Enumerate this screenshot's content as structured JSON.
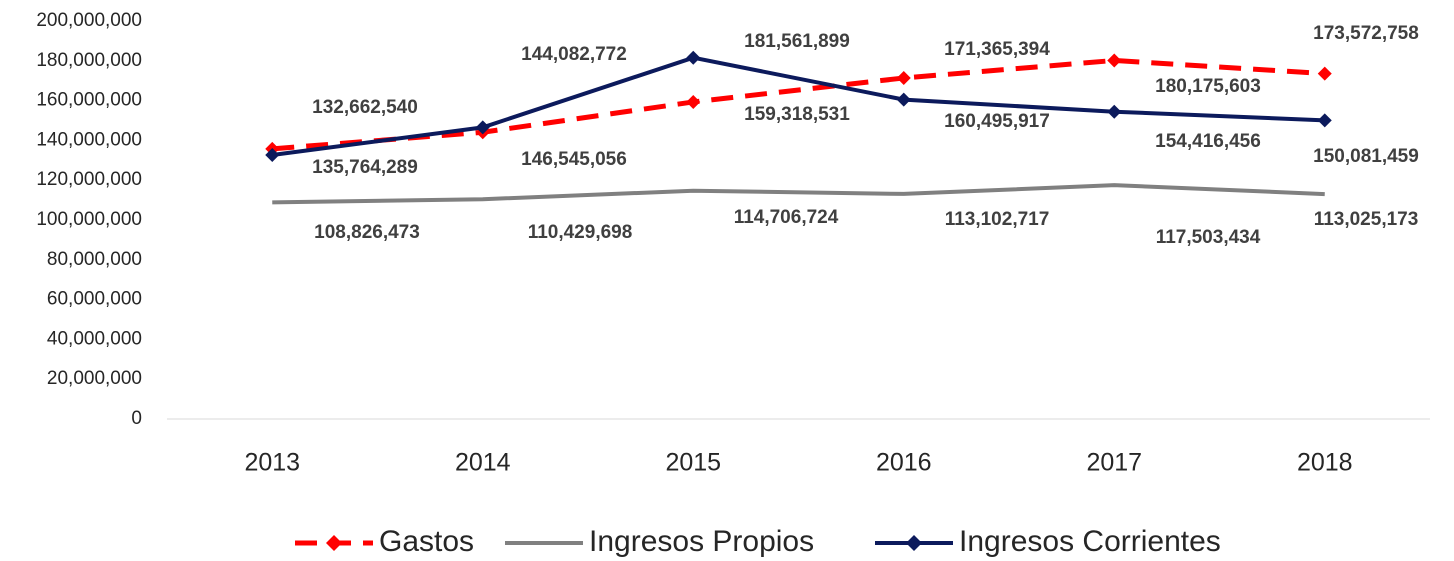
{
  "chart_data": {
    "type": "line",
    "categories": [
      "2013",
      "2014",
      "2015",
      "2016",
      "2017",
      "2018"
    ],
    "series": [
      {
        "name": "Gastos",
        "color": "#ff0000",
        "dashed": true,
        "markers": true,
        "values": [
          135764289,
          144082772,
          159318531,
          171365394,
          180175603,
          173572758
        ],
        "value_labels": [
          "135,764,289",
          "144,082,772",
          "159,318,531",
          "171,365,394",
          "180,175,603",
          "173,572,758"
        ]
      },
      {
        "name": "Ingresos Propios",
        "color": "#808080",
        "dashed": false,
        "markers": false,
        "values": [
          108826473,
          110429698,
          114706724,
          113102717,
          117503434,
          113025173
        ],
        "value_labels": [
          "108,826,473",
          "110,429,698",
          "114,706,724",
          "113,102,717",
          "117,503,434",
          "113,025,173"
        ]
      },
      {
        "name": "Ingresos Corrientes",
        "color": "#0c1a5c",
        "dashed": false,
        "markers": true,
        "values": [
          132662540,
          146545056,
          181561899,
          160495917,
          154416456,
          150081459
        ],
        "value_labels": [
          "132,662,540",
          "146,545,056",
          "181,561,899",
          "160,495,917",
          "154,416,456",
          "150,081,459"
        ]
      }
    ],
    "ylim": [
      0,
      200000000
    ],
    "yticks": [
      0,
      {
        "value": 20000000,
        "label": "20,000,000"
      },
      {
        "value": 40000000,
        "label": "40,000,000"
      },
      {
        "value": 60000000,
        "label": "60,000,000"
      },
      {
        "value": 80000000,
        "label": "80,000,000"
      },
      {
        "value": 100000000,
        "label": "100,000,000"
      },
      {
        "value": 120000000,
        "label": "120,000,000"
      },
      {
        "value": 140000000,
        "label": "140,000,000"
      },
      {
        "value": 160000000,
        "label": "160,000,000"
      },
      {
        "value": 180000000,
        "label": "180,000,000"
      },
      {
        "value": 200000000,
        "label": "200,000,000"
      }
    ],
    "legend": "bottom"
  }
}
